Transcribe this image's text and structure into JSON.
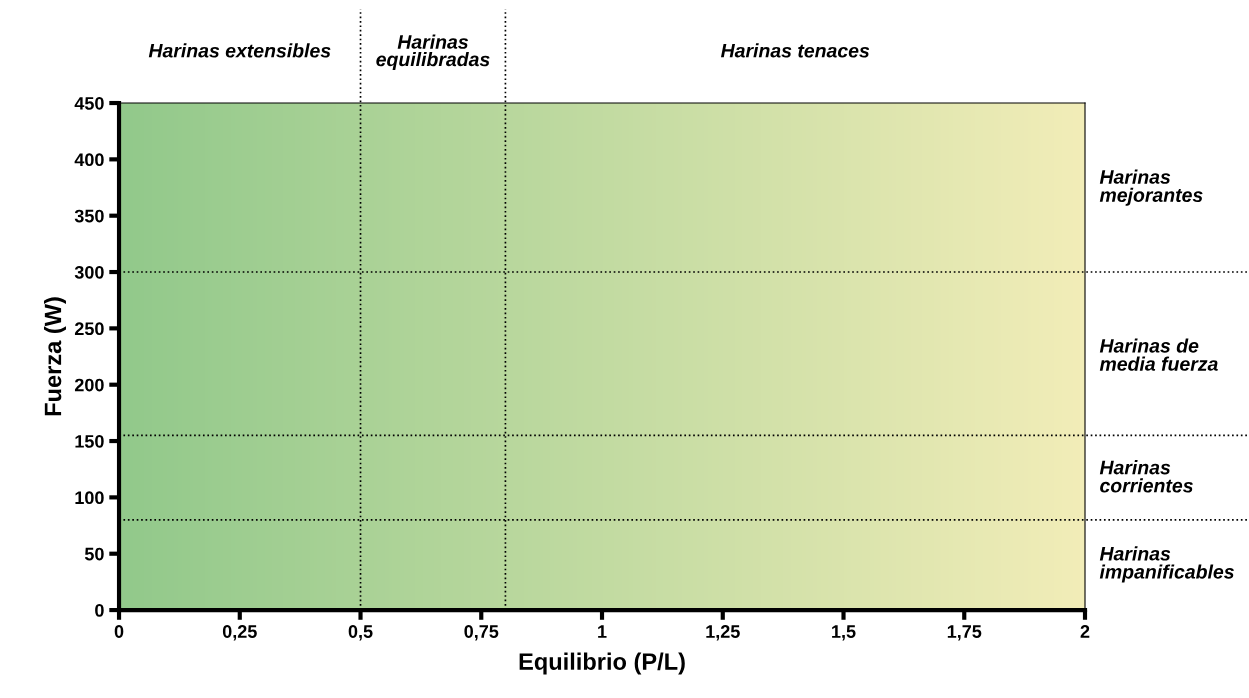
{
  "chart_data": {
    "type": "scatter",
    "xlabel": "Equilibrio (P/L)",
    "ylabel": "Fuerza (W)",
    "xlim": [
      0,
      2
    ],
    "ylim": [
      0,
      450
    ],
    "xticks": [
      0,
      {
        "value": 0.25,
        "label": "0,25"
      },
      {
        "value": 0.5,
        "label": "0,5"
      },
      {
        "value": 0.75,
        "label": "0,75"
      },
      1,
      {
        "value": 1.25,
        "label": "1,25"
      },
      {
        "value": 1.5,
        "label": "1,5"
      },
      {
        "value": 1.75,
        "label": "1,75"
      },
      2
    ],
    "yticks": [
      0,
      50,
      100,
      150,
      200,
      250,
      300,
      350,
      400,
      450
    ],
    "ref_lines": [
      {
        "axis": "x",
        "value": 0.5,
        "line_style": "dotted",
        "color": "#000000"
      },
      {
        "axis": "x",
        "value": 0.8,
        "line_style": "dotted",
        "color": "#000000"
      },
      {
        "axis": "y",
        "value": 300,
        "line_style": "dotted",
        "color": "#000000"
      },
      {
        "axis": "y",
        "value": 155,
        "line_style": "dotted",
        "color": "#000000"
      },
      {
        "axis": "y",
        "value": 80,
        "line_style": "dotted",
        "color": "#000000"
      }
    ],
    "annotations": [
      "Harinas extensibles",
      "Harinas\nequilibradas",
      "Harinas tenaces",
      "Harinas\nmejorantes",
      "Harinas de\nmedia fuerza",
      "Harinas\ncorrientes",
      "Harinas\nimpanificables"
    ]
  }
}
